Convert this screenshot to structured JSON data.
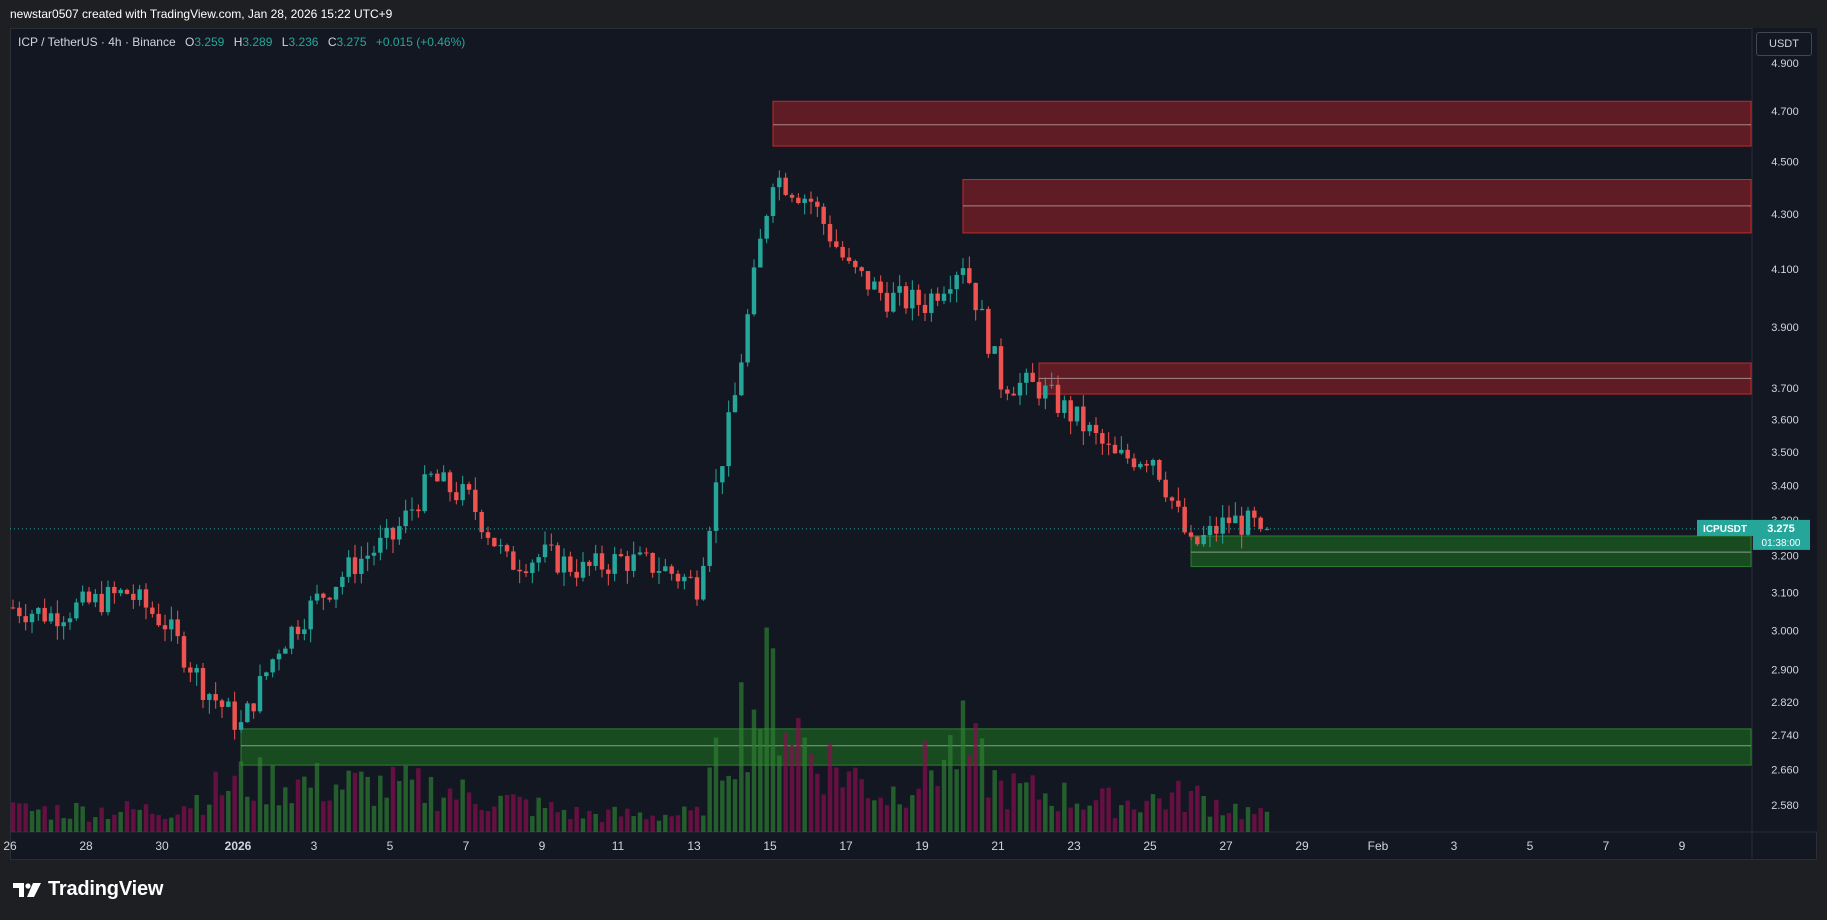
{
  "header": {
    "attribution": "newstar0507 created with TradingView.com, Jan 28, 2026 15:22 UTC+9"
  },
  "legend": {
    "symbol": "ICP / TetherUS · 4h · Binance",
    "o_label": "O",
    "o_value": "3.259",
    "h_label": "H",
    "h_value": "3.289",
    "l_label": "L",
    "l_value": "3.236",
    "c_label": "C",
    "c_value": "3.275",
    "change": "+0.015 (+0.46%)"
  },
  "currency_button": "USDT",
  "price_tag": {
    "symbol": "ICPUSDT",
    "price": "3.275",
    "countdown": "01:38:00"
  },
  "footer": {
    "brand": "TradingView"
  },
  "colors": {
    "up": "#26a69a",
    "down": "#ef5350",
    "background": "#131722",
    "supply_zone": "#7a1f26",
    "demand_zone": "#1b5e20"
  },
  "chart_data": {
    "type": "candlestick",
    "symbol": "ICPUSDT",
    "interval": "4h",
    "exchange": "Binance",
    "scale": "log",
    "ylim": [
      2.52,
      5.05
    ],
    "y_ticks": [
      "4.900",
      "4.700",
      "4.500",
      "4.300",
      "4.100",
      "3.900",
      "3.700",
      "3.600",
      "3.500",
      "3.400",
      "3.300",
      "3.200",
      "3.100",
      "3.000",
      "2.900",
      "2.820",
      "2.740",
      "2.660",
      "2.580"
    ],
    "x_ticks": [
      "26",
      "28",
      "30",
      "2026",
      "3",
      "5",
      "7",
      "9",
      "11",
      "13",
      "15",
      "17",
      "19",
      "21",
      "23",
      "25",
      "27",
      "29",
      "Feb",
      "3",
      "5",
      "7",
      "9"
    ],
    "last_price": 3.275,
    "zones": [
      {
        "kind": "supply",
        "from": "Jan 15",
        "low": 4.56,
        "mid": 4.645,
        "high": 4.74
      },
      {
        "kind": "supply",
        "from": "Jan 20",
        "low": 4.23,
        "mid": 4.33,
        "high": 4.43
      },
      {
        "kind": "supply",
        "from": "Jan 22",
        "low": 3.68,
        "mid": 3.73,
        "high": 3.78
      },
      {
        "kind": "demand",
        "from": "Jan 26",
        "low": 3.17,
        "mid": 3.21,
        "high": 3.255
      },
      {
        "kind": "demand",
        "from": "Jan 1",
        "low": 2.67,
        "mid": 2.715,
        "high": 2.755
      }
    ],
    "price_path": [
      [
        "Dec 26",
        3.06
      ],
      [
        "Dec 27",
        3.04
      ],
      [
        "Dec 28",
        3.07
      ],
      [
        "Dec 29",
        3.1
      ],
      [
        "Dec 30",
        3.02
      ],
      [
        "Dec 31",
        2.86
      ],
      [
        "Jan 1",
        2.76
      ],
      [
        "Jan 2",
        2.96
      ],
      [
        "Jan 3",
        3.08
      ],
      [
        "Jan 4",
        3.18
      ],
      [
        "Jan 5",
        3.25
      ],
      [
        "Jan 6",
        3.42
      ],
      [
        "Jan 7",
        3.36
      ],
      [
        "Jan 8",
        3.18
      ],
      [
        "Jan 9",
        3.2
      ],
      [
        "Jan 10",
        3.16
      ],
      [
        "Jan 11",
        3.19
      ],
      [
        "Jan 12",
        3.17
      ],
      [
        "Jan 13",
        3.12
      ],
      [
        "Jan 14",
        3.67
      ],
      [
        "Jan 15",
        4.45
      ],
      [
        "Jan 16",
        4.35
      ],
      [
        "Jan 17",
        4.1
      ],
      [
        "Jan 18",
        4.0
      ],
      [
        "Jan 19",
        3.98
      ],
      [
        "Jan 20",
        4.13
      ],
      [
        "Jan 21",
        3.72
      ],
      [
        "Jan 22",
        3.7
      ],
      [
        "Jan 23",
        3.6
      ],
      [
        "Jan 24",
        3.48
      ],
      [
        "Jan 25",
        3.49
      ],
      [
        "Jan 26",
        3.22
      ],
      [
        "Jan 27",
        3.3
      ],
      [
        "Jan 28",
        3.275
      ]
    ],
    "volume_path": [
      [
        "Dec 26",
        0.15
      ],
      [
        "Dec 30",
        0.15
      ],
      [
        "Jan 1",
        0.35
      ],
      [
        "Jan 6",
        0.3
      ],
      [
        "Jan 10",
        0.12
      ],
      [
        "Jan 13",
        0.12
      ],
      [
        "Jan 14",
        0.75
      ],
      [
        "Jan 15",
        1.0
      ],
      [
        "Jan 16",
        0.55
      ],
      [
        "Jan 18",
        0.25
      ],
      [
        "Jan 20",
        0.6
      ],
      [
        "Jan 21",
        0.3
      ],
      [
        "Jan 24",
        0.2
      ],
      [
        "Jan 26",
        0.25
      ],
      [
        "Jan 28",
        0.1
      ]
    ]
  }
}
